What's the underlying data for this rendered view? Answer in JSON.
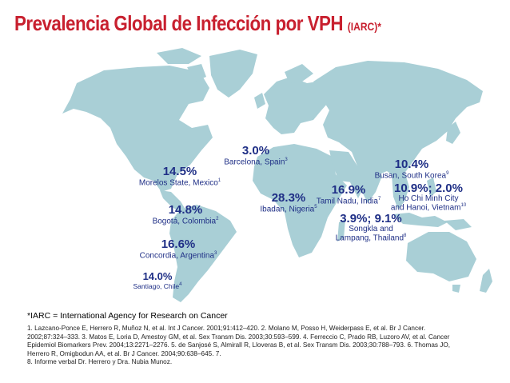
{
  "title": {
    "main": "Prevalencia Global de Infección por VPH",
    "suffix": "(IARC)*"
  },
  "colors": {
    "title": "#c8202f",
    "labels": "#1f2f86",
    "map": "#a9cfd6"
  },
  "icons": [
    "world-map"
  ],
  "sites": [
    {
      "pct": "3.0%",
      "place": "Barcelona, Spain",
      "ref": "3"
    },
    {
      "pct": "14.5%",
      "place": "Morelos State, Mexico",
      "ref": "1"
    },
    {
      "pct": "14.8%",
      "place": "Bogotá, Colombia",
      "ref": "2"
    },
    {
      "pct": "16.6%",
      "place": "Concordia, Argentina",
      "ref": "3"
    },
    {
      "pct": "14.0%",
      "place": "Santiago, Chile",
      "ref": "4"
    },
    {
      "pct": "28.3%",
      "place": "Ibadan, Nigeria",
      "ref": "5"
    },
    {
      "pct": "16.9%",
      "place": "Tamil Nadu, India",
      "ref": "7"
    },
    {
      "pct": "10.4%",
      "place": "Busan, South Korea",
      "ref": "9"
    },
    {
      "pct": "10.9%; 2.0%",
      "place": "Ho Chi Minh City",
      "place2": "and Hanoi, Vietnam",
      "ref": "10"
    },
    {
      "pct": "3.9%; 9.1%",
      "place": "Songkla and",
      "place2": "Lampang, Thailand",
      "ref": "8"
    }
  ],
  "footnote": "*IARC = International Agency for Research on Cancer",
  "references": [
    "1. Lazcano-Ponce E, Herrero R, Muñoz N, et al. Int J Cancer. 2001;91:412–420. 2. Molano M, Posso H, Weiderpass E, et al. Br J Cancer.",
    "2002;87:324–333. 3. Matos E, Loria D, Amestoy GM, et al. Sex Transm Dis. 2003;30:593–599. 4. Ferreccio C, Prado RB, Luzoro AV, et al. Cancer",
    "Epidemiol Biomarkers Prev. 2004;13:2271–2276. 5. de Sanjosé S, Almirall R, Lloveras B, et al. Sex Transm Dis. 2003;30:788–793. 6. Thomas JO,",
    "Herrero R, Omigbodun AA, et al. Br J Cancer. 2004;90:638–645. 7.",
    "8. Informe verbal Dr. Herrero y Dra. Nubia Munoz."
  ]
}
